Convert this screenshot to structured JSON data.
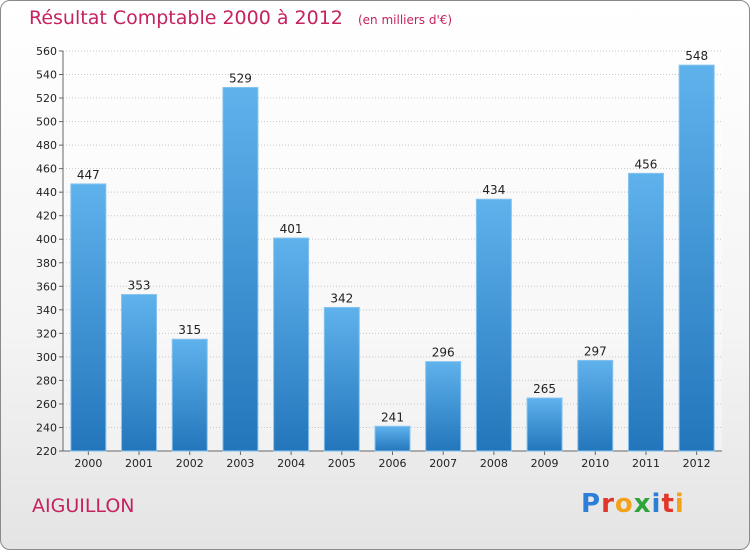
{
  "chart_data": {
    "type": "bar",
    "title": "Résultat Comptable 2000 à 2012",
    "subtitle": "(en milliers d'€)",
    "categories": [
      "2000",
      "2001",
      "2002",
      "2003",
      "2004",
      "2005",
      "2006",
      "2007",
      "2008",
      "2009",
      "2010",
      "2011",
      "2012"
    ],
    "values": [
      447,
      353,
      315,
      529,
      401,
      342,
      241,
      296,
      434,
      265,
      297,
      456,
      548
    ],
    "ylim": [
      220,
      560
    ],
    "ytick_step": 20,
    "grid": true,
    "bar_color": "#3a93d8"
  },
  "footer": {
    "commune": "AIGUILLON",
    "logo_letters": [
      {
        "ch": "P",
        "color": "#2c7fd6"
      },
      {
        "ch": "r",
        "color": "#e2362b"
      },
      {
        "ch": "o",
        "color": "#f3a21b"
      },
      {
        "ch": "x",
        "color": "#2fa43a"
      },
      {
        "ch": "i",
        "color": "#2c7fd6"
      },
      {
        "ch": "t",
        "color": "#e2362b"
      },
      {
        "ch": "i",
        "color": "#f3a21b"
      }
    ]
  }
}
